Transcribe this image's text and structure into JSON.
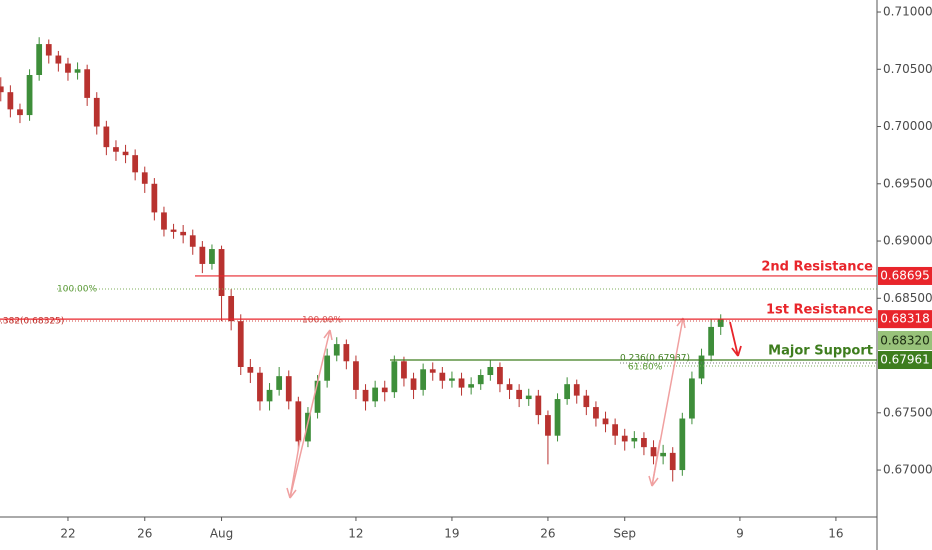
{
  "chart_data": {
    "type": "candlestick",
    "up_color": "#3e8e3a",
    "down_color": "#b8322f",
    "x": [
      -3.5,
      -3,
      -2.5,
      -2,
      -1.5,
      -1,
      -0.5,
      0,
      0.5,
      1,
      1.5,
      2,
      2.5,
      3,
      3.5,
      4,
      4.5,
      5,
      5.5,
      6,
      6.5,
      7,
      7.5,
      8,
      8.5,
      9,
      9.5,
      10,
      10.5,
      11,
      11.5,
      12,
      12.5,
      13,
      13.5,
      14,
      14.5,
      15,
      15.5,
      16,
      16.5,
      17,
      17.5,
      18,
      18.5,
      19,
      19.5,
      20,
      20.5,
      21,
      21.5,
      22,
      22.5,
      23,
      23.5,
      24,
      24.5,
      25,
      25.5,
      26,
      26.5,
      27,
      27.5,
      28,
      28.5,
      29,
      29.5,
      30,
      30.5,
      31,
      31.5,
      32,
      32.5,
      33,
      33.5,
      34
    ],
    "open": [
      0.7035,
      0.703,
      0.7015,
      0.701,
      0.7045,
      0.7072,
      0.7062,
      0.7055,
      0.7047,
      0.705,
      0.7025,
      0.7,
      0.6982,
      0.6978,
      0.6975,
      0.696,
      0.695,
      0.6925,
      0.691,
      0.6908,
      0.6905,
      0.6895,
      0.688,
      0.6893,
      0.6852,
      0.683,
      0.679,
      0.6785,
      0.676,
      0.677,
      0.6782,
      0.676,
      0.6725,
      0.675,
      0.6778,
      0.68,
      0.681,
      0.6795,
      0.677,
      0.676,
      0.6772,
      0.6768,
      0.6795,
      0.678,
      0.677,
      0.6788,
      0.6785,
      0.6778,
      0.678,
      0.6772,
      0.6775,
      0.6783,
      0.679,
      0.6775,
      0.677,
      0.6762,
      0.6765,
      0.6748,
      0.673,
      0.6762,
      0.6775,
      0.6765,
      0.6755,
      0.6745,
      0.674,
      0.673,
      0.6725,
      0.6728,
      0.672,
      0.6712,
      0.6715,
      0.67,
      0.6745,
      0.678,
      0.68,
      0.6825
    ],
    "high": [
      0.7043,
      0.7036,
      0.702,
      0.705,
      0.7078,
      0.7076,
      0.7066,
      0.706,
      0.7056,
      0.7054,
      0.703,
      0.7005,
      0.6988,
      0.6984,
      0.698,
      0.6965,
      0.6955,
      0.693,
      0.6915,
      0.6914,
      0.691,
      0.69,
      0.6897,
      0.6896,
      0.6858,
      0.6836,
      0.6797,
      0.679,
      0.6776,
      0.679,
      0.6787,
      0.6764,
      0.6755,
      0.6783,
      0.6806,
      0.6816,
      0.6814,
      0.68,
      0.6775,
      0.6778,
      0.6778,
      0.68,
      0.6799,
      0.6785,
      0.6793,
      0.6794,
      0.679,
      0.6786,
      0.6785,
      0.6781,
      0.6788,
      0.6796,
      0.6794,
      0.678,
      0.6775,
      0.6771,
      0.677,
      0.6752,
      0.6767,
      0.6781,
      0.6779,
      0.677,
      0.676,
      0.6751,
      0.6745,
      0.6736,
      0.6734,
      0.6733,
      0.6726,
      0.6722,
      0.672,
      0.675,
      0.6786,
      0.6806,
      0.6832,
      0.6836
    ],
    "low": [
      0.7022,
      0.7008,
      0.7003,
      0.7005,
      0.704,
      0.7055,
      0.7048,
      0.704,
      0.7041,
      0.7018,
      0.6993,
      0.6975,
      0.697,
      0.6968,
      0.6953,
      0.6942,
      0.6918,
      0.6904,
      0.6902,
      0.6898,
      0.6888,
      0.6872,
      0.6875,
      0.683,
      0.6822,
      0.6783,
      0.6776,
      0.6752,
      0.6752,
      0.6765,
      0.6753,
      0.6717,
      0.672,
      0.6745,
      0.6772,
      0.6795,
      0.6788,
      0.6762,
      0.6752,
      0.6755,
      0.676,
      0.6763,
      0.6773,
      0.6762,
      0.6765,
      0.6778,
      0.6771,
      0.6772,
      0.6765,
      0.6766,
      0.677,
      0.6778,
      0.6768,
      0.6762,
      0.6755,
      0.6756,
      0.674,
      0.6705,
      0.6725,
      0.6757,
      0.6758,
      0.6748,
      0.6738,
      0.6733,
      0.6722,
      0.6717,
      0.6719,
      0.6713,
      0.6705,
      0.6705,
      0.669,
      0.6695,
      0.674,
      0.6775,
      0.6795,
      0.6818
    ],
    "close": [
      0.703,
      0.7015,
      0.701,
      0.7045,
      0.7072,
      0.7062,
      0.7055,
      0.7047,
      0.705,
      0.7025,
      0.7,
      0.6982,
      0.6978,
      0.6975,
      0.696,
      0.695,
      0.6925,
      0.691,
      0.6908,
      0.6905,
      0.6895,
      0.688,
      0.6893,
      0.6852,
      0.683,
      0.679,
      0.6785,
      0.676,
      0.677,
      0.6782,
      0.676,
      0.6725,
      0.675,
      0.6778,
      0.68,
      0.681,
      0.6795,
      0.677,
      0.676,
      0.6772,
      0.6768,
      0.6795,
      0.678,
      0.677,
      0.6788,
      0.6785,
      0.6778,
      0.678,
      0.6772,
      0.6775,
      0.6783,
      0.679,
      0.6775,
      0.677,
      0.6762,
      0.6765,
      0.6748,
      0.673,
      0.6762,
      0.6775,
      0.6765,
      0.6755,
      0.6745,
      0.674,
      0.673,
      0.6725,
      0.6728,
      0.672,
      0.6712,
      0.6715,
      0.67,
      0.6745,
      0.678,
      0.68,
      0.6825,
      0.6832
    ],
    "xlim": [
      -3.54,
      42.14
    ],
    "xticks": [
      {
        "value": 0,
        "label": "22"
      },
      {
        "value": 4,
        "label": "26"
      },
      {
        "value": 8,
        "label": "Aug"
      },
      {
        "value": 15,
        "label": "12"
      },
      {
        "value": 20,
        "label": "19"
      },
      {
        "value": 25,
        "label": "26"
      },
      {
        "value": 29,
        "label": "Sep"
      },
      {
        "value": 35,
        "label": "9"
      },
      {
        "value": 40,
        "label": "16"
      }
    ],
    "ylim": [
      0.6659,
      0.71105
    ],
    "yticks": [
      {
        "value": 0.67,
        "label": "0.67000"
      },
      {
        "value": 0.675,
        "label": "0.67500"
      },
      {
        "value": 0.685,
        "label": "0.68500"
      },
      {
        "value": 0.69,
        "label": "0.69000"
      },
      {
        "value": 0.695,
        "label": "0.69500"
      },
      {
        "value": 0.7,
        "label": "0.70000"
      },
      {
        "value": 0.705,
        "label": "0.70500"
      },
      {
        "value": 0.71,
        "label": "0.71000"
      }
    ],
    "levels": [
      {
        "label": "2nd Resistance",
        "value": 0.68695,
        "value_label": "0.68695",
        "color": "#e8252b"
      },
      {
        "label": "1st Resistance",
        "value": 0.68318,
        "value_label": "0.68318",
        "color": "#e8252b"
      },
      {
        "label": "Major Support",
        "value": 0.67961,
        "value_label": "0.67961",
        "color": "#3e7d1e"
      }
    ],
    "price_label": "0.68320",
    "annotations": [
      "100.00%",
      ".382(0.68325)",
      "100.00%",
      "0.236(0.67987)",
      "61.80%"
    ]
  }
}
